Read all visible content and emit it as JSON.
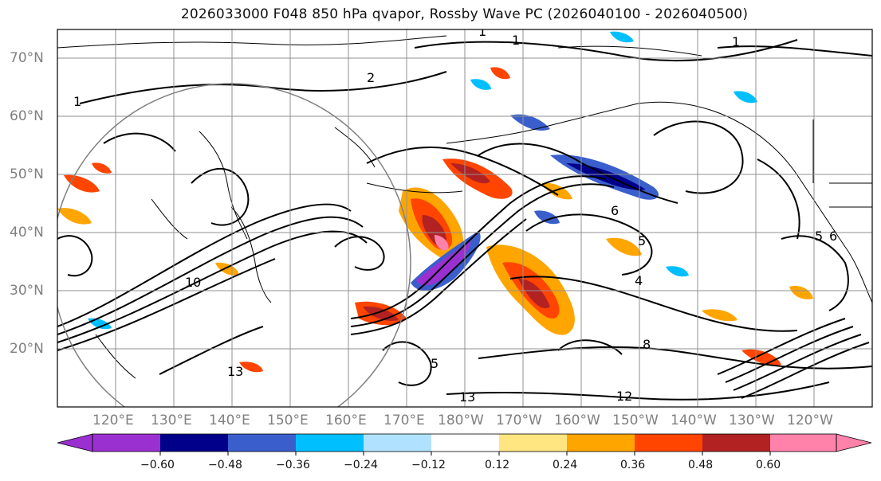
{
  "title": "2026033000 F048 850 hPa qvapor, Rossby Wave PC (2026040100 - 2026040500)",
  "map": {
    "projection": "plate-carree",
    "lon_range": [
      110,
      250
    ],
    "lat_range": [
      10,
      75
    ],
    "lat_labels": [
      "20°N",
      "30°N",
      "40°N",
      "50°N",
      "60°N",
      "70°N"
    ],
    "lon_labels": [
      "120°E",
      "130°E",
      "140°E",
      "150°E",
      "160°E",
      "170°E",
      "180°W",
      "170°W",
      "160°W",
      "150°W",
      "140°W",
      "130°W",
      "120°W"
    ],
    "contour_labels": [
      "1",
      "1",
      "1",
      "1",
      "2",
      "4",
      "5",
      "5",
      "6",
      "6",
      "8",
      "10",
      "12",
      "13",
      "13",
      "5"
    ],
    "colors": {
      "coastline": "#000000",
      "gridline": "#909090",
      "contour": "#000000",
      "circle": "#808080"
    }
  },
  "colorbar": {
    "ticks": [
      "−0.60",
      "−0.48",
      "−0.36",
      "−0.24",
      "−0.12",
      "0.12",
      "0.24",
      "0.36",
      "0.48",
      "0.60"
    ],
    "colors": [
      "#9b30d0",
      "#00008b",
      "#3a5fcd",
      "#00bfff",
      "#b0e2ff",
      "#ffffff",
      "#ffe680",
      "#ffa500",
      "#ff4500",
      "#b22222",
      "#ff82ab"
    ],
    "extend": "both"
  }
}
